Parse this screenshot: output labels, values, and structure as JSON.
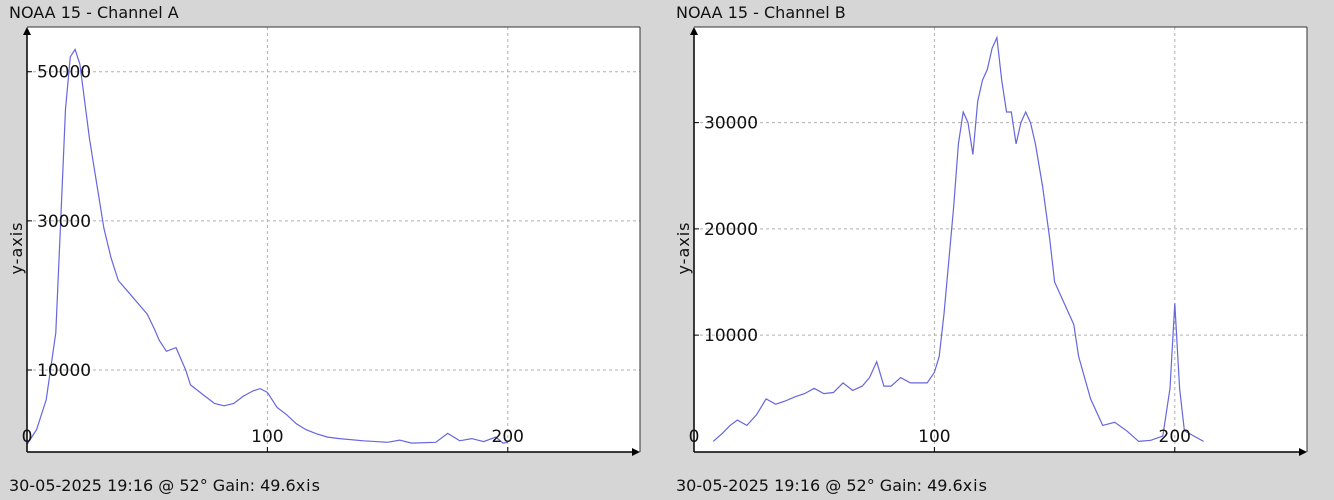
{
  "panels": [
    {
      "title": "NOAA 15 - Channel A",
      "footer": "30-05-2025 19:16 @ 52° Gain: 49.6",
      "footer_suffix": "xis"
    },
    {
      "title": "NOAA 15 - Channel B",
      "footer": "30-05-2025 19:16 @ 52° Gain: 49.6",
      "footer_suffix": "xis"
    }
  ],
  "colors": {
    "line": "#6666dd",
    "grid": "#b0b0b0",
    "plot_bg": "#ffffff",
    "page_bg": "#d6d6d6"
  },
  "chart_data": [
    {
      "type": "line",
      "title": "NOAA 15 - Channel A",
      "ylabel": "y-axis",
      "xlim": [
        0,
        255
      ],
      "ylim": [
        -1000,
        56000
      ],
      "xticks": [
        0,
        100,
        200
      ],
      "xtick_labels": [
        "0",
        "100",
        "200"
      ],
      "yticks": [
        10000,
        30000,
        50000
      ],
      "ytick_labels": [
        "10000",
        "30000",
        "50000"
      ],
      "grid": true,
      "series": [
        {
          "x": [
            0,
            4,
            8,
            12,
            14,
            16,
            18,
            20,
            22,
            24,
            26,
            28,
            30,
            32,
            35,
            38,
            42,
            46,
            50,
            53,
            55,
            58,
            62,
            66,
            68,
            70,
            74,
            78,
            82,
            86,
            90,
            94,
            97,
            100,
            102,
            104,
            108,
            112,
            116,
            120,
            125,
            130,
            140,
            150,
            155,
            160,
            170,
            175,
            180,
            185,
            190,
            195,
            198,
            200
          ],
          "values": [
            0,
            2000,
            6000,
            15000,
            30000,
            45000,
            52000,
            53000,
            51000,
            46000,
            41000,
            37000,
            33000,
            29000,
            25000,
            22000,
            20500,
            19000,
            17500,
            15500,
            14000,
            12500,
            13000,
            10000,
            8000,
            7500,
            6500,
            5500,
            5200,
            5500,
            6500,
            7200,
            7500,
            7000,
            6000,
            5000,
            4000,
            2800,
            2000,
            1500,
            1000,
            800,
            500,
            300,
            600,
            200,
            300,
            1500,
            500,
            800,
            400,
            1000,
            200,
            300
          ]
        }
      ]
    },
    {
      "type": "line",
      "title": "NOAA 15 - Channel B",
      "ylabel": "y-axis",
      "xlim": [
        0,
        255
      ],
      "ylim": [
        -1000,
        39000
      ],
      "xticks": [
        0,
        100,
        200
      ],
      "xtick_labels": [
        "0",
        "100",
        "200"
      ],
      "yticks": [
        10000,
        20000,
        30000
      ],
      "ytick_labels": [
        "10000",
        "20000",
        "30000"
      ],
      "grid": true,
      "series": [
        {
          "x": [
            8,
            12,
            15,
            18,
            22,
            26,
            30,
            34,
            38,
            42,
            46,
            50,
            54,
            58,
            62,
            66,
            70,
            73,
            76,
            79,
            82,
            86,
            90,
            94,
            97,
            100,
            102,
            104,
            106,
            108,
            110,
            112,
            114,
            116,
            118,
            120,
            122,
            124,
            126,
            128,
            130,
            132,
            134,
            136,
            138,
            140,
            142,
            145,
            148,
            150,
            154,
            158,
            160,
            165,
            170,
            175,
            180,
            185,
            190,
            195,
            198,
            200,
            202,
            204,
            208,
            212
          ],
          "values": [
            0,
            800,
            1500,
            2000,
            1500,
            2500,
            4000,
            3500,
            3800,
            4200,
            4500,
            5000,
            4500,
            4600,
            5500,
            4800,
            5200,
            6000,
            7500,
            5200,
            5200,
            6000,
            5500,
            5500,
            5500,
            6500,
            8000,
            12000,
            17000,
            22000,
            28000,
            31000,
            30000,
            27000,
            32000,
            34000,
            35000,
            37000,
            38000,
            34000,
            31000,
            31000,
            28000,
            30000,
            31000,
            30000,
            28000,
            24000,
            19000,
            15000,
            13000,
            11000,
            8000,
            4000,
            1500,
            1800,
            1000,
            0,
            100,
            500,
            5000,
            13000,
            5000,
            1000,
            500,
            0
          ]
        }
      ]
    }
  ]
}
